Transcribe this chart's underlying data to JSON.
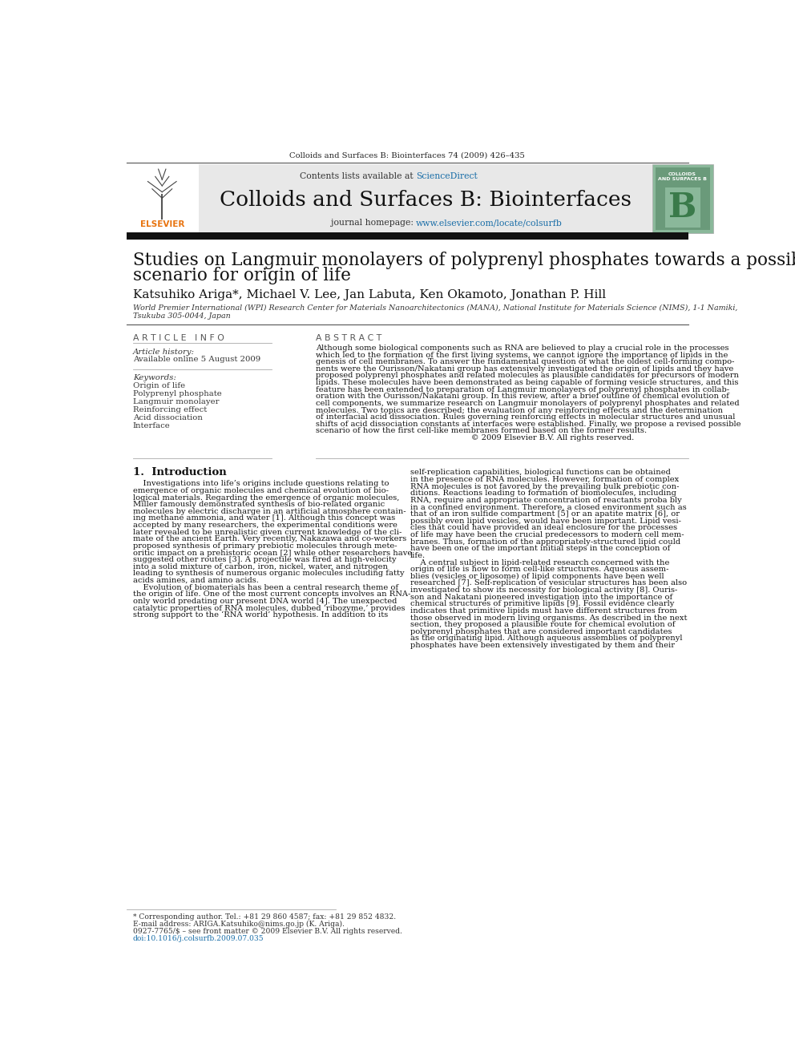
{
  "page_bg": "#ffffff",
  "top_journal_ref": "Colloids and Surfaces B: Biointerfaces 74 (2009) 426–435",
  "journal_name": "Colloids and Surfaces B: Biointerfaces",
  "contents_line": "Contents lists available at ScienceDirect",
  "journal_homepage": "journal homepage: www.elsevier.com/locate/colsurfb",
  "header_bg": "#e8e8e8",
  "article_title_line1": "Studies on Langmuir monolayers of polyprenyl phosphates towards a possible",
  "article_title_line2": "scenario for origin of life",
  "authors": "Katsuhiko Ariga*, Michael V. Lee, Jan Labuta, Ken Okamoto, Jonathan P. Hill",
  "affiliation1": "World Premier International (WPI) Research Center for Materials Nanoarchitectonics (MANA), National Institute for Materials Science (NIMS), 1-1 Namiki,",
  "affiliation2": "Tsukuba 305-0044, Japan",
  "section_article_info": "A R T I C L E   I N F O",
  "section_abstract": "A B S T R A C T",
  "article_history_label": "Article history:",
  "article_history_value": "Available online 5 August 2009",
  "keywords_label": "Keywords:",
  "keywords": [
    "Origin of life",
    "Polyprenyl phosphate",
    "Langmuir monolayer",
    "Reinforcing effect",
    "Acid dissociation",
    "Interface"
  ],
  "abstract_lines": [
    "Although some biological components such as RNA are believed to play a crucial role in the processes",
    "which led to the formation of the first living systems, we cannot ignore the importance of lipids in the",
    "genesis of cell membranes. To answer the fundamental question of what the oldest cell-forming compo-",
    "nents were the Ourisson/Nakatani group has extensively investigated the origin of lipids and they have",
    "proposed polyprenyl phosphates and related molecules as plausible candidates for precursors of modern",
    "lipids. These molecules have been demonstrated as being capable of forming vesicle structures, and this",
    "feature has been extended to preparation of Langmuir monolayers of polyprenyl phosphates in collab-",
    "oration with the Ourisson/Nakatani group. In this review, after a brief outline of chemical evolution of",
    "cell components, we summarize research on Langmuir monolayers of polyprenyl phosphates and related",
    "molecules. Two topics are described; the evaluation of any reinforcing effects and the determination",
    "of interfacial acid dissociation. Rules governing reinforcing effects in molecular structures and unusual",
    "shifts of acid dissociation constants at interfaces were established. Finally, we propose a revised possible",
    "scenario of how the first cell-like membranes formed based on the former results.",
    "                                                              © 2009 Elsevier B.V. All rights reserved."
  ],
  "intro_heading": "1.  Introduction",
  "intro_left_lines": [
    "    Investigations into life’s origins include questions relating to",
    "emergence of organic molecules and chemical evolution of bio-",
    "logical materials. Regarding the emergence of organic molecules,",
    "Miller famously demonstrated synthesis of bio-related organic",
    "molecules by electric discharge in an artificial atmosphere contain-",
    "ing methane ammonia, and water [1]. Although this concept was",
    "accepted by many researchers, the experimental conditions were",
    "later revealed to be unrealistic given current knowledge of the cli-",
    "mate of the ancient Earth. Very recently, Nakazawa and co-workers",
    "proposed synthesis of primary prebiotic molecules through mete-",
    "oritic impact on a prehistoric ocean [2] while other researchers have",
    "suggested other routes [3]. A projectile was fired at high-velocity",
    "into a solid mixture of carbon, iron, nickel, water, and nitrogen",
    "leading to synthesis of numerous organic molecules including fatty",
    "acids amines, and amino acids.",
    "    Evolution of biomaterials has been a central research theme of",
    "the origin of life. One of the most current concepts involves an RNA-",
    "only world predating our present DNA world [4]. The unexpected",
    "catalytic properties of RNA molecules, dubbed ‘ribozyme,’ provides",
    "strong support to the ‘RNA world’ hypothesis. In addition to its"
  ],
  "intro_right_lines": [
    "self-replication capabilities, biological functions can be obtained",
    "in the presence of RNA molecules. However, formation of complex",
    "RNA molecules is not favored by the prevailing bulk prebiotic con-",
    "ditions. Reactions leading to formation of biomolecules, including",
    "RNA, require and appropriate concentration of reactants proba bly",
    "in a confined environment. Therefore, a closed environment such as",
    "that of an iron sulfide compartment [5] or an apatite matrix [6], or",
    "possibly even lipid vesicles, would have been important. Lipid vesi-",
    "cles that could have provided an ideal enclosure for the processes",
    "of life may have been the crucial predecessors to modern cell mem-",
    "branes. Thus, formation of the appropriately-structured lipid could",
    "have been one of the important initial steps in the conception of",
    "life.",
    "    A central subject in lipid-related research concerned with the",
    "origin of life is how to form cell-like structures. Aqueous assem-",
    "blies (vesicles or liposome) of lipid components have been well",
    "researched [7]. Self-replication of vesicular structures has been also",
    "investigated to show its necessity for biological activity [8]. Ouris-",
    "son and Nakatani pioneered investigation into the importance of",
    "chemical structures of primitive lipids [9]. Fossil evidence clearly",
    "indicates that primitive lipids must have different structures from",
    "those observed in modern living organisms. As described in the next",
    "section, they proposed a plausible route for chemical evolution of",
    "polyprenyl phosphates that are considered important candidates",
    "as the originating lipid. Although aqueous assemblies of polyprenyl",
    "phosphates have been extensively investigated by them and their"
  ],
  "footer_star": "* Corresponding author. Tel.: +81 29 860 4587; fax: +81 29 852 4832.",
  "footer_email": "E-mail address: ARIGA.Katsuhiko@nims.go.jp (K. Ariga).",
  "footer_issn": "0927-7765/$ – see front matter © 2009 Elsevier B.V. All rights reserved.",
  "footer_doi": "doi:10.1016/j.colsurfb.2009.07.035"
}
